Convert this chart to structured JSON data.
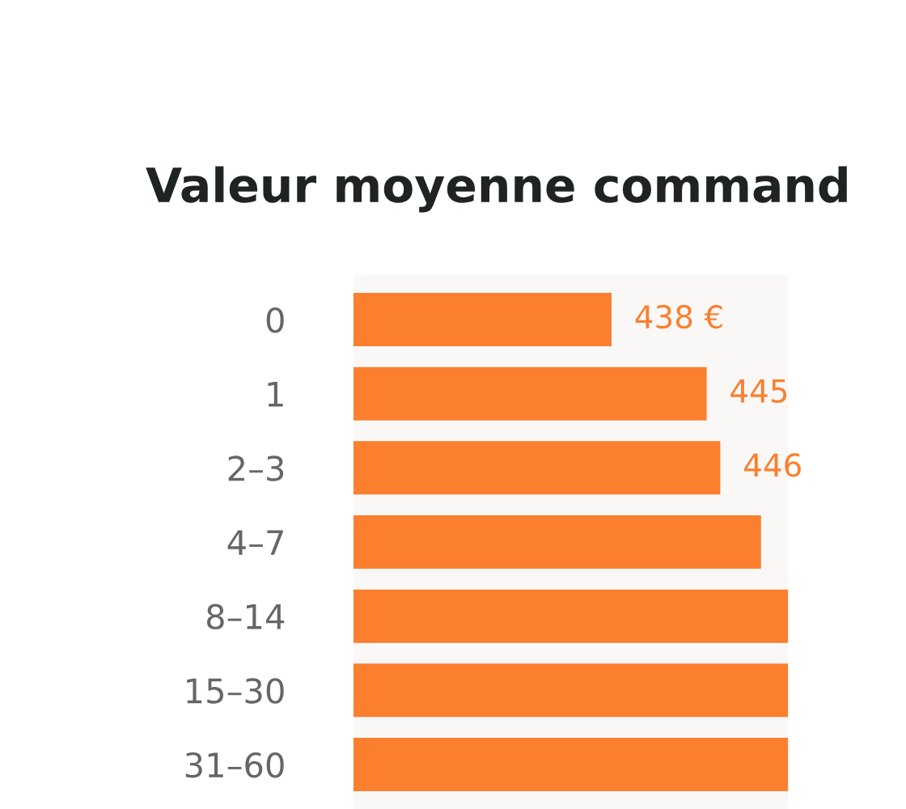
{
  "chart_data": {
    "type": "bar",
    "orientation": "horizontal",
    "title": "Valeur moyenne command",
    "categories": [
      "0",
      "1",
      "2–3",
      "4–7",
      "8–14",
      "15–30",
      "31–60"
    ],
    "values": [
      438,
      445,
      446,
      449,
      451,
      451,
      451
    ],
    "value_labels": [
      "438 €",
      "445",
      "446",
      null,
      null,
      null,
      null
    ],
    "xlim": [
      419,
      451
    ],
    "tick_labels": "y",
    "color": "#fb7f2e",
    "grid": false,
    "legend": false
  }
}
